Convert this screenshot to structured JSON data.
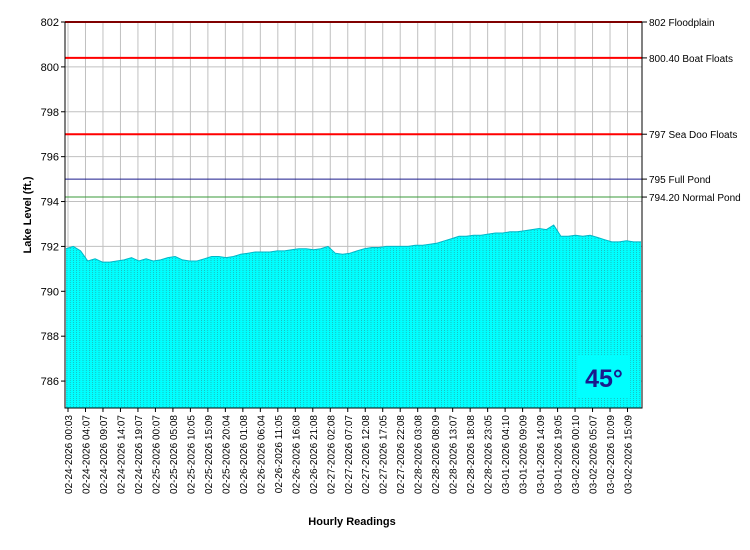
{
  "chart_data": {
    "type": "area",
    "xlabel": "Hourly Readings",
    "ylabel": "Lake Level (ft.)",
    "ylim": [
      784.8,
      802
    ],
    "yticks": [
      786,
      788,
      790,
      792,
      794,
      796,
      798,
      800,
      802
    ],
    "grid": true,
    "x_tick_labels": [
      "02-24-2026 00:03",
      "02-24-2026 04:07",
      "02-24-2026 09:07",
      "02-24-2026 14:07",
      "02-24-2026 19:07",
      "02-25-2026 00:07",
      "02-25-2026 05:08",
      "02-25-2026 10:05",
      "02-25-2026 15:09",
      "02-25-2026 20:04",
      "02-26-2026 01:08",
      "02-26-2026 06:04",
      "02-26-2026 11:05",
      "02-26-2026 16:08",
      "02-26-2026 21:08",
      "02-27-2026 02:08",
      "02-27-2026 07:07",
      "02-27-2026 12:08",
      "02-27-2026 17:05",
      "02-27-2026 22:08",
      "02-28-2026 03:08",
      "02-28-2026 08:09",
      "02-28-2026 13:07",
      "02-28-2026 18:08",
      "02-28-2026 23:05",
      "03-01-2026 04:10",
      "03-01-2026 09:09",
      "03-01-2026 14:09",
      "03-01-2026 19:05",
      "03-02-2026 00:10",
      "03-02-2026 05:07",
      "03-02-2026 10:09",
      "03-02-2026 15:09"
    ],
    "series": [
      {
        "values": [
          791.9,
          792.0,
          791.8,
          791.35,
          791.45,
          791.3,
          791.3,
          791.35,
          791.4,
          791.5,
          791.35,
          791.45,
          791.35,
          791.4,
          791.5,
          791.55,
          791.4,
          791.35,
          791.35,
          791.45,
          791.55,
          791.55,
          791.5,
          791.55,
          791.65,
          791.7,
          791.75,
          791.75,
          791.75,
          791.8,
          791.8,
          791.85,
          791.9,
          791.9,
          791.85,
          791.9,
          792.0,
          791.7,
          791.65,
          791.7,
          791.8,
          791.9,
          791.95,
          791.95,
          792.0,
          792.0,
          792.0,
          792.0,
          792.05,
          792.05,
          792.1,
          792.15,
          792.25,
          792.35,
          792.45,
          792.45,
          792.5,
          792.5,
          792.55,
          792.6,
          792.6,
          792.65,
          792.65,
          792.7,
          792.75,
          792.8,
          792.75,
          792.95,
          792.45,
          792.45,
          792.5,
          792.45,
          792.5,
          792.4,
          792.3,
          792.2,
          792.2,
          792.25,
          792.2,
          792.2
        ],
        "color": "#00ffff"
      }
    ],
    "reference_lines": [
      {
        "value": 802,
        "label": "802 Floodplain",
        "color": "#ff0000"
      },
      {
        "value": 800.4,
        "label": "800.40 Boat Floats",
        "color": "#ff0000"
      },
      {
        "value": 797,
        "label": "797 Sea Doo Floats",
        "color": "#ff0000"
      },
      {
        "value": 795,
        "label": "795 Full Pond",
        "color": "#1a1a8c"
      },
      {
        "value": 794.2,
        "label": "794.20 Normal Pond",
        "color": "#3a9a3a"
      }
    ],
    "badge": {
      "text": "45°",
      "background": "#00ffff",
      "color": "#1a1a8c"
    }
  }
}
